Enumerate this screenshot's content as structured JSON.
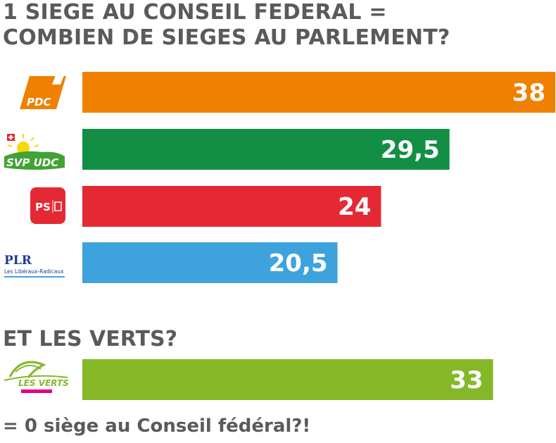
{
  "title_line1": "1 SIEGE AU CONSEIL FEDERAL =",
  "title_line2": "COMBIEN DE SIEGES AU PARLEMENT?",
  "subtitle": "ET LES VERTS?",
  "footnote": "= 0 siège au Conseil fédéral?!",
  "logos": {
    "pdc": "PDC",
    "svp": "SVP UDC",
    "ps": "PS",
    "plr": "PLR",
    "plr_sub": "Les Libéraux-Radicaux",
    "verts": "LES VERTS"
  },
  "chart_data": {
    "type": "bar",
    "orientation": "horizontal",
    "categories": [
      "PDC",
      "SVP UDC",
      "PS",
      "PLR",
      "LES VERTS"
    ],
    "values": [
      38,
      29.5,
      24,
      20.5,
      33
    ],
    "value_labels": [
      "38",
      "29,5",
      "24",
      "20,5",
      "33"
    ],
    "colors": [
      "#f08000",
      "#128f45",
      "#e52934",
      "#3ea3dc",
      "#84b829"
    ],
    "xlim": [
      0,
      38
    ],
    "grid": false
  }
}
